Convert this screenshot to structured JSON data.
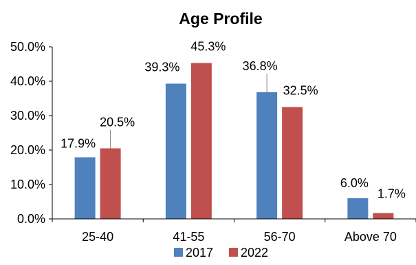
{
  "chart_data": {
    "type": "bar",
    "title": "Age Profile",
    "categories": [
      "25-40",
      "41-55",
      "56-70",
      "Above 70"
    ],
    "series": [
      {
        "name": "2017",
        "values": [
          17.9,
          39.3,
          36.8,
          6.0
        ],
        "labels": [
          "17.9%",
          "39.3%",
          "36.8%",
          "6.0%"
        ],
        "color": "#4f81bd"
      },
      {
        "name": "2022",
        "values": [
          20.5,
          45.3,
          32.5,
          1.7
        ],
        "labels": [
          "20.5%",
          "45.3%",
          "32.5%",
          "1.7%"
        ],
        "color": "#c0504d"
      }
    ],
    "ylim": [
      0,
      50
    ],
    "yticks": [
      "0.0%",
      "10.0%",
      "20.0%",
      "30.0%",
      "40.0%",
      "50.0%"
    ],
    "xlabel": "",
    "ylabel": "",
    "grid": false,
    "legend": "bottom",
    "data_labels": true
  }
}
